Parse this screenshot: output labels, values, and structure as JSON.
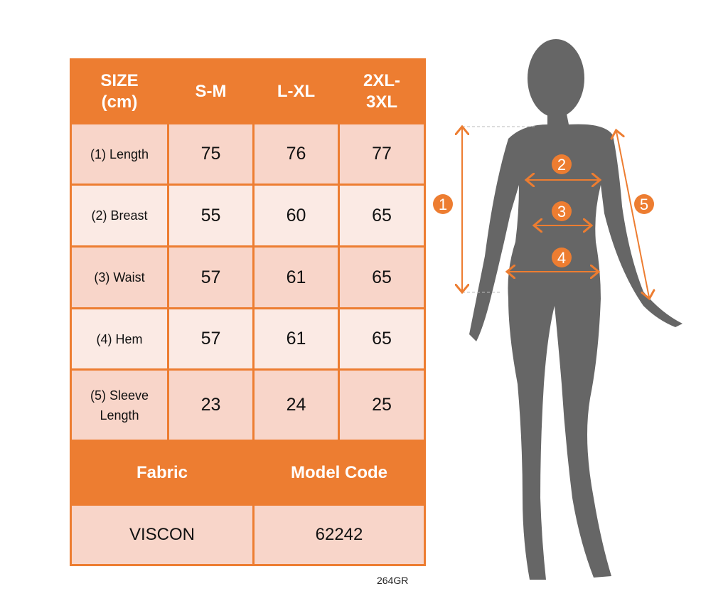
{
  "table": {
    "headers": [
      "SIZE (cm)",
      "S-M",
      "L-XL",
      "2XL-3XL"
    ],
    "header_lines": [
      [
        "SIZE",
        "(cm)"
      ],
      [
        "S-M"
      ],
      [
        "L-XL"
      ],
      [
        "2XL-",
        "3XL"
      ]
    ],
    "rows": [
      {
        "label": "(1) Length",
        "values": [
          "75",
          "76",
          "77"
        ]
      },
      {
        "label": "(2) Breast",
        "values": [
          "55",
          "60",
          "65"
        ]
      },
      {
        "label": "(3) Waist",
        "values": [
          "57",
          "61",
          "65"
        ]
      },
      {
        "label": "(4) Hem",
        "values": [
          "57",
          "61",
          "65"
        ]
      },
      {
        "label": "(5) Sleeve Length",
        "label_lines": [
          "(5) Sleeve",
          "Length"
        ],
        "values": [
          "23",
          "24",
          "25"
        ]
      }
    ],
    "footer_headers": [
      "Fabric",
      "Model Code"
    ],
    "footer_values": [
      "VISCON",
      "62242"
    ]
  },
  "product_code": "264GR",
  "figure": {
    "markers": [
      "1",
      "2",
      "3",
      "4",
      "5"
    ]
  },
  "colors": {
    "accent": "#ED7D31",
    "row_dark": "#F8D5C9",
    "row_light": "#FBEAE4",
    "silhouette": "#666666"
  }
}
